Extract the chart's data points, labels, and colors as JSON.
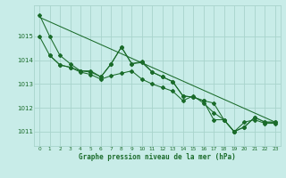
{
  "xlabel": "Graphe pression niveau de la mer (hPa)",
  "bg_color": "#c8ece8",
  "grid_color": "#a8d4cc",
  "line_color": "#1a6b2a",
  "xlim": [
    -0.5,
    23.5
  ],
  "ylim": [
    1010.4,
    1016.3
  ],
  "yticks": [
    1011,
    1012,
    1013,
    1014,
    1015
  ],
  "xticks": [
    0,
    1,
    2,
    3,
    4,
    5,
    6,
    7,
    8,
    9,
    10,
    11,
    12,
    13,
    14,
    15,
    16,
    17,
    18,
    19,
    20,
    21,
    22,
    23
  ],
  "series": [
    {
      "x": [
        0,
        1,
        2,
        3,
        4,
        5,
        6,
        7,
        8,
        9,
        10,
        11,
        12,
        13,
        14,
        15,
        16,
        17,
        18,
        19,
        20,
        21,
        22,
        23
      ],
      "y": [
        1015.9,
        1015.0,
        1014.2,
        1013.85,
        1013.55,
        1013.55,
        1013.3,
        1013.85,
        1014.55,
        1013.85,
        1013.9,
        1013.5,
        1013.3,
        1013.1,
        1012.5,
        1012.45,
        1012.3,
        1012.2,
        1011.5,
        1011.0,
        1011.2,
        1011.6,
        1011.4,
        1011.4
      ]
    },
    {
      "x": [
        0,
        1,
        2,
        3,
        4,
        5,
        6,
        7,
        8,
        9,
        10,
        11,
        12,
        13,
        14,
        15,
        16,
        17,
        18,
        19,
        20,
        21,
        22,
        23
      ],
      "y": [
        1015.0,
        1014.2,
        1013.8,
        1013.7,
        1013.5,
        1013.4,
        1013.2,
        1013.35,
        1013.45,
        1013.55,
        1013.2,
        1013.0,
        1012.85,
        1012.7,
        1012.3,
        1012.5,
        1012.2,
        1011.8,
        1011.5,
        1011.0,
        1011.4,
        1011.5,
        1011.35,
        1011.35
      ]
    },
    {
      "x": [
        0,
        23
      ],
      "y": [
        1015.8,
        1011.4
      ]
    },
    {
      "x": [
        1,
        2,
        3,
        4,
        5,
        6,
        7,
        8,
        9,
        10,
        11,
        12,
        13,
        14,
        15,
        16,
        17,
        18,
        19,
        20,
        21,
        22,
        23
      ],
      "y": [
        1014.2,
        1013.8,
        1013.7,
        1013.55,
        1013.5,
        1013.3,
        1013.85,
        1014.55,
        1013.85,
        1013.95,
        1013.5,
        1013.3,
        1013.1,
        1012.5,
        1012.45,
        1012.3,
        1011.5,
        1011.5,
        1011.0,
        1011.2,
        1011.6,
        1011.4,
        1011.4
      ]
    }
  ]
}
